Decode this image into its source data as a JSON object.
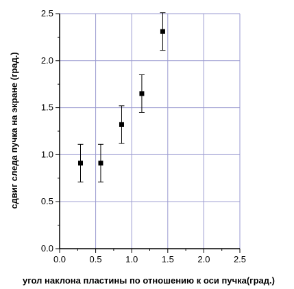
{
  "chart_data": {
    "type": "scatter",
    "title": "",
    "xlabel": "угол наклона пластины по отношению к оси пучка(град.)",
    "ylabel": "сдвиг следа пучка на экране (град.)",
    "xlim": [
      0.0,
      2.5
    ],
    "ylim": [
      0.0,
      2.5
    ],
    "x_ticks": [
      "0.0",
      "0.5",
      "1.0",
      "1.5",
      "2.0",
      "2.5"
    ],
    "y_ticks": [
      "0.0",
      "0.5",
      "1.0",
      "1.5",
      "2.0",
      "2.5"
    ],
    "grid": true,
    "grid_color": "#9a9ad0",
    "marker": "square",
    "marker_color": "#000000",
    "points": [
      {
        "x": 0.29,
        "y": 0.91,
        "err": 0.2
      },
      {
        "x": 0.57,
        "y": 0.91,
        "err": 0.2
      },
      {
        "x": 0.86,
        "y": 1.32,
        "err": 0.2
      },
      {
        "x": 1.14,
        "y": 1.65,
        "err": 0.2
      },
      {
        "x": 1.43,
        "y": 2.31,
        "err": 0.2
      }
    ]
  }
}
